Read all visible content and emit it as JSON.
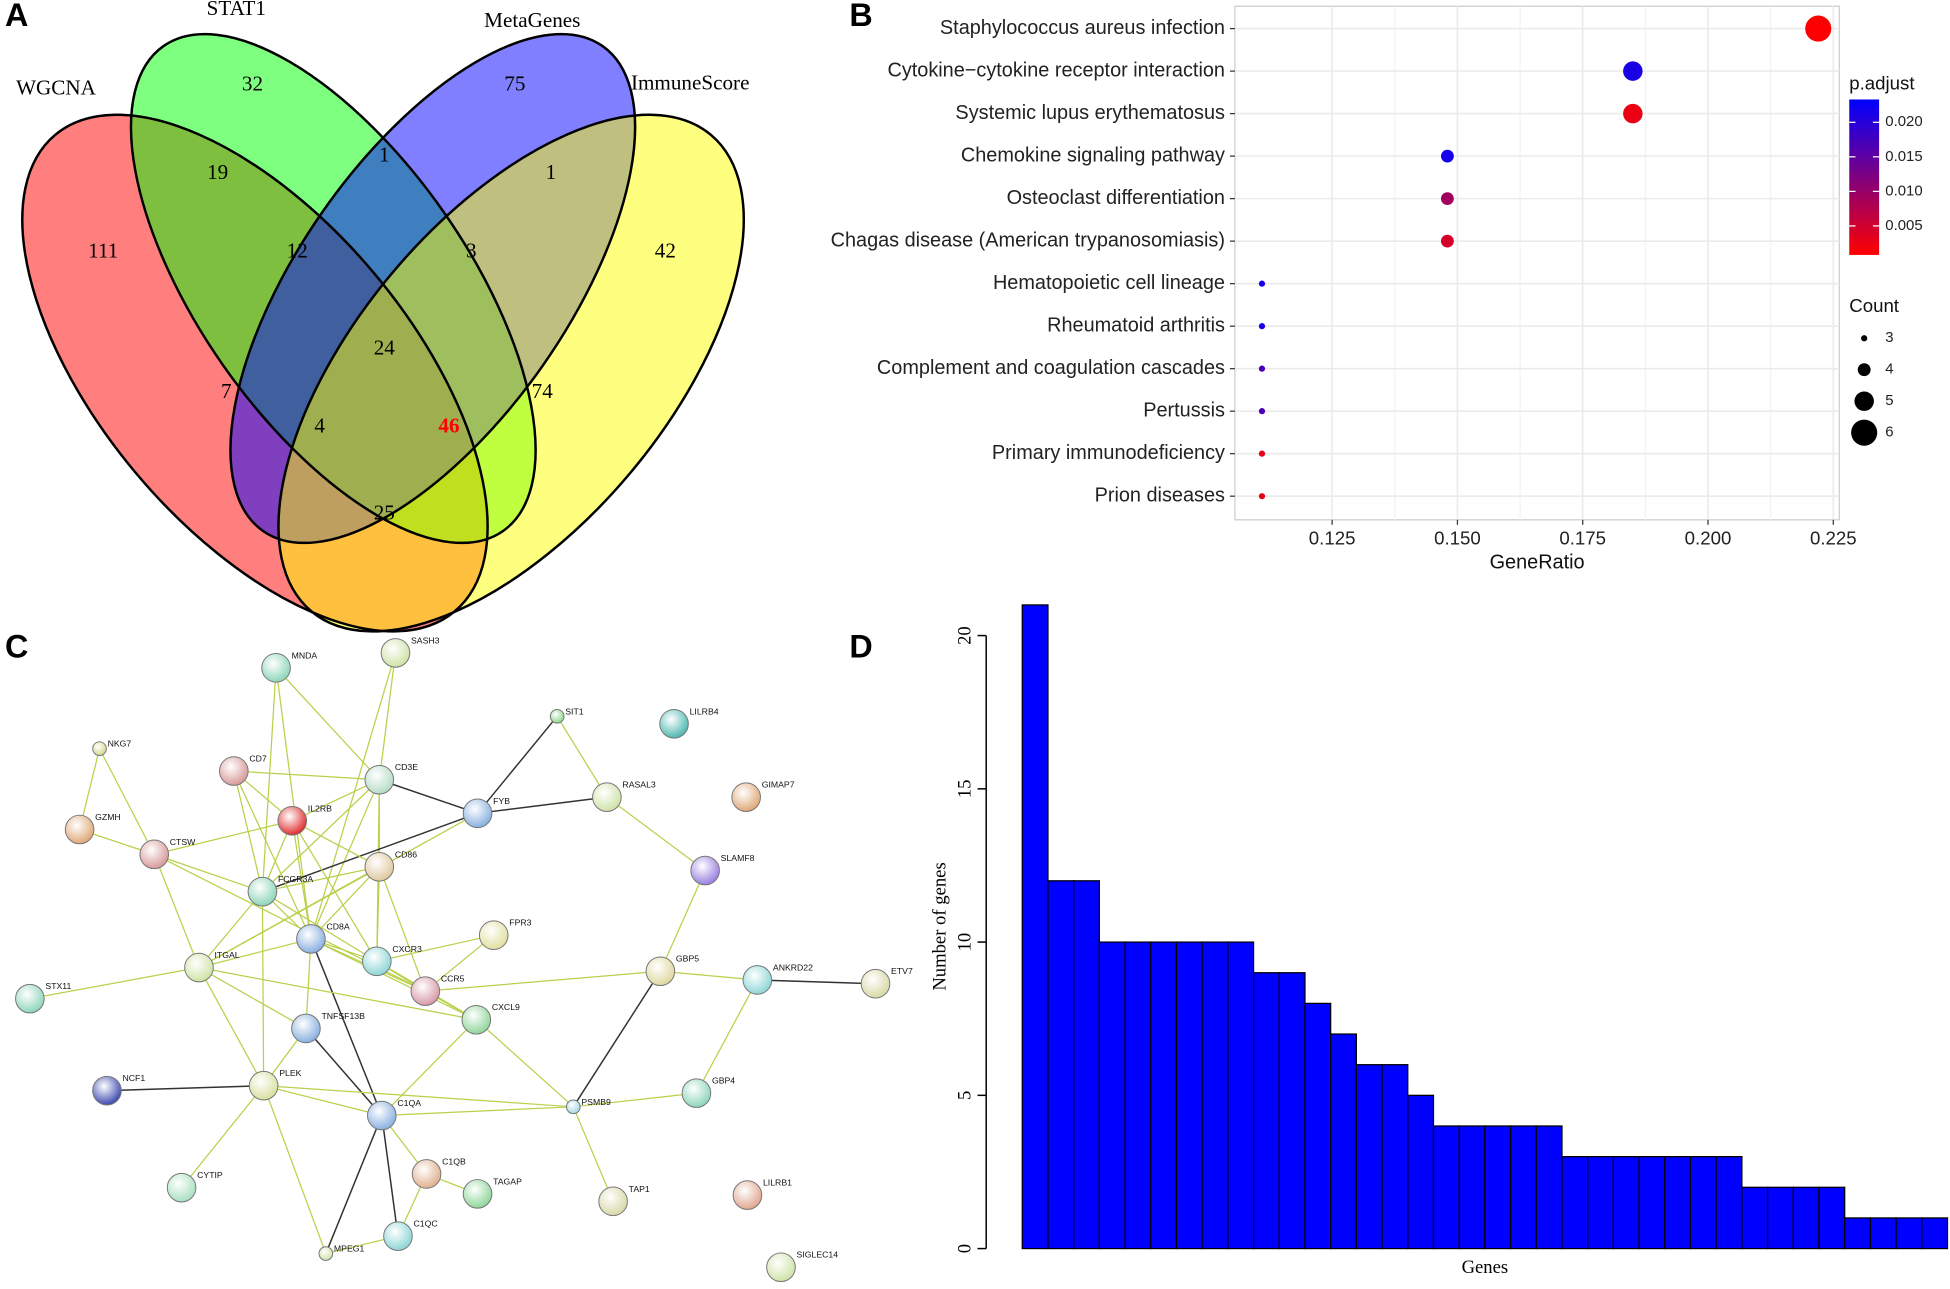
{
  "panel_labels": [
    "A",
    "B",
    "C",
    "D"
  ],
  "chart_data": [
    {
      "type": "venn",
      "sets": [
        {
          "name": "WGCNA",
          "color": "#ff0000"
        },
        {
          "name": "STAT1",
          "color": "#00ff00"
        },
        {
          "name": "MetaGenes",
          "color": "#0000ff"
        },
        {
          "name": "ImmuneScore",
          "color": "#ffff00"
        }
      ],
      "regions": [
        {
          "value": 111
        },
        {
          "value": 32
        },
        {
          "value": 75
        },
        {
          "value": 42
        },
        {
          "value": 19
        },
        {
          "value": 1
        },
        {
          "value": 1
        },
        {
          "value": 12
        },
        {
          "value": 3
        },
        {
          "value": 24
        },
        {
          "value": 7
        },
        {
          "value": 74
        },
        {
          "value": 4
        },
        {
          "value": 46,
          "color": "#ff0000"
        },
        {
          "value": 25
        }
      ]
    },
    {
      "type": "dot",
      "categories": [
        "Staphylococcus aureus infection",
        "Cytokine−cytokine receptor interaction",
        "Systemic lupus erythematosus",
        "Chemokine signaling pathway",
        "Osteoclast differentiation",
        "Chagas disease (American trypanosomiasis)",
        "Hematopoietic cell lineage",
        "Rheumatoid arthritis",
        "Complement and coagulation cascades",
        "Pertussis",
        "Primary immunodeficiency",
        "Prion diseases"
      ],
      "x": [
        0.222,
        0.185,
        0.185,
        0.148,
        0.148,
        0.148,
        0.111,
        0.111,
        0.111,
        0.111,
        0.111,
        0.111
      ],
      "sizes": [
        6,
        5,
        5,
        4,
        4,
        4,
        3,
        3,
        3,
        3,
        3,
        3
      ],
      "p_adjust": [
        0.001,
        0.021,
        0.0025,
        0.0215,
        0.009,
        0.0045,
        0.021,
        0.021,
        0.017,
        0.017,
        0.003,
        0.003
      ],
      "xlabel": "GeneRatio",
      "xlim": [
        0.1056,
        0.2262
      ],
      "xticks": [
        0.125,
        {
          "value": 0.15,
          "label": "0.150"
        },
        0.175,
        {
          "value": 0.2,
          "label": "0.200"
        },
        0.225
      ],
      "grid": true,
      "color_legend": {
        "title": "p.adjust",
        "lim": [
          0.0008,
          0.0233
        ],
        "ticks": [
          0.005,
          {
            "value": 0.01,
            "label": "0.010"
          },
          0.015,
          {
            "value": 0.02,
            "label": "0.020"
          }
        ],
        "low_color": "#ff0000",
        "high_color": "#0000ff"
      },
      "size_legend": {
        "title": "Count",
        "values": [
          3,
          4,
          5,
          6
        ]
      }
    },
    {
      "type": "network",
      "nodes": [
        "MNDA",
        "SASH3",
        "SIT1",
        "LILRB4",
        "NKG7",
        "CD7",
        "CD3E",
        "RASAL3",
        "GIMAP7",
        "IL2RB",
        "FYB",
        "GZMH",
        "CTSW",
        "CD86",
        "SLAMF8",
        "FCGR3A",
        "CD8A",
        "FPR3",
        "CXCR3",
        "ITGAL",
        "GBP5",
        "ANKRD22",
        "ETV7",
        "STX11",
        "CCR5",
        "CXCL9",
        "TNFSF13B",
        "NCF1",
        "PLEK",
        "GBP4",
        "C1QA",
        "PSMB9",
        "C1QB",
        "TAGAP",
        "CYTIP",
        "TAP1",
        "LILRB1",
        "MPEG1",
        "C1QC",
        "SIGLEC14"
      ]
    },
    {
      "type": "bar",
      "categories": [
        null,
        null,
        null,
        null,
        null,
        null,
        null,
        null,
        null,
        null,
        null,
        null,
        null,
        null,
        null,
        null,
        null,
        null,
        null,
        null,
        null,
        null,
        null,
        null,
        null,
        null,
        null,
        null,
        null,
        null,
        null,
        null,
        null,
        null,
        null,
        null
      ],
      "values": [
        21,
        12,
        12,
        10,
        10,
        10,
        10,
        10,
        10,
        9,
        9,
        8,
        7,
        6,
        6,
        5,
        4,
        4,
        4,
        4,
        4,
        3,
        3,
        3,
        3,
        3,
        3,
        3,
        2,
        2,
        2,
        2,
        1,
        1,
        1,
        1
      ],
      "color": "#0000ff",
      "xlabel": "Genes",
      "ylabel": "Number of genes",
      "ylim": [
        0,
        21.2
      ],
      "yticks": [
        0,
        5,
        10,
        15,
        20
      ]
    }
  ]
}
